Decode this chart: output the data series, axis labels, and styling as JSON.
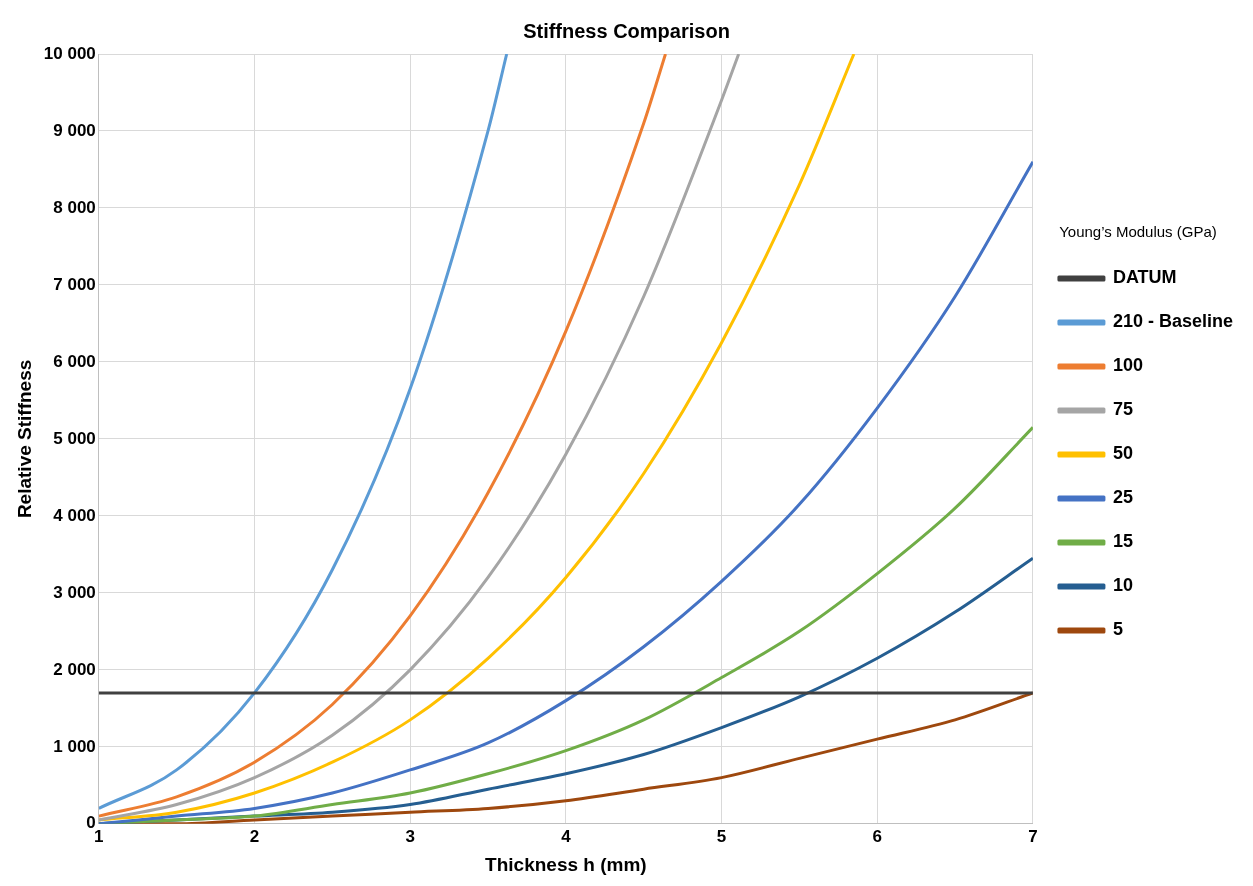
{
  "chart_data": {
    "type": "line",
    "title": "Stiffness Comparison",
    "xlabel": "Thickness h (mm)",
    "ylabel": "Relative Stiffness",
    "legend_title": "Young’s Modulus (GPa)",
    "legend": "right",
    "grid": true,
    "marker": "none",
    "line_style": "solid",
    "xlim": [
      1,
      7
    ],
    "xticks": [
      1,
      2,
      3,
      4,
      5,
      6,
      7
    ],
    "ylim": [
      0,
      10000
    ],
    "yticks": [
      0,
      {
        "value": 1000,
        "label": "1 000"
      },
      {
        "value": 2000,
        "label": "2 000"
      },
      {
        "value": 3000,
        "label": "3 000"
      },
      {
        "value": 4000,
        "label": "4 000"
      },
      {
        "value": 5000,
        "label": "5 000"
      },
      {
        "value": 6000,
        "label": "6 000"
      },
      {
        "value": 7000,
        "label": "7 000"
      },
      {
        "value": 8000,
        "label": "8 000"
      },
      {
        "value": 9000,
        "label": "9 000"
      },
      {
        "value": 10000,
        "label": "10 000"
      }
    ],
    "series": [
      {
        "name": "DATUM",
        "color": "#404040",
        "x": [
          1,
          7
        ],
        "values": [
          1700,
          1700
        ]
      },
      {
        "name": "210 - Baseline",
        "color": "#5b9bd5",
        "x": [
          1,
          1.5,
          2,
          2.5,
          3,
          3.5,
          3.62
        ],
        "values": [
          200,
          700,
          1700,
          3300,
          5650,
          9000,
          10000
        ]
      },
      {
        "name": "100",
        "color": "#ed7d31",
        "x": [
          1,
          1.5,
          2,
          2.5,
          3,
          3.5,
          4,
          4.5,
          4.64
        ],
        "values": [
          100,
          350,
          800,
          1550,
          2700,
          4300,
          6400,
          9100,
          10000
        ]
      },
      {
        "name": "75",
        "color": "#a5a5a5",
        "x": [
          1,
          1.5,
          2,
          2.5,
          3,
          3.5,
          4,
          4.5,
          5,
          5.11
        ],
        "values": [
          50,
          250,
          600,
          1150,
          2000,
          3200,
          4800,
          6850,
          9400,
          10000
        ]
      },
      {
        "name": "50",
        "color": "#ffc000",
        "x": [
          1,
          1.5,
          2,
          2.5,
          3,
          3.5,
          4,
          4.5,
          5,
          5.5,
          5.85
        ],
        "values": [
          50,
          150,
          400,
          800,
          1350,
          2150,
          3200,
          4550,
          6250,
          8300,
          10000
        ]
      },
      {
        "name": "25",
        "color": "#4472c4",
        "x": [
          1,
          1.5,
          2,
          2.5,
          3,
          3.5,
          4,
          4.5,
          5,
          5.5,
          6,
          6.5,
          7
        ],
        "values": [
          0,
          100,
          200,
          400,
          700,
          1050,
          1600,
          2300,
          3150,
          4150,
          5400,
          6850,
          8600
        ]
      },
      {
        "name": "15",
        "color": "#70ad47",
        "x": [
          1,
          1.5,
          2,
          2.5,
          3,
          3.5,
          4,
          4.5,
          5,
          5.5,
          6,
          6.5,
          7
        ],
        "values": [
          0,
          50,
          100,
          250,
          400,
          650,
          950,
          1350,
          1900,
          2500,
          3250,
          4100,
          5150
        ]
      },
      {
        "name": "10",
        "color": "#255e91",
        "x": [
          1,
          1.5,
          2,
          2.5,
          3,
          3.5,
          4,
          4.5,
          5,
          5.5,
          6,
          6.5,
          7
        ],
        "values": [
          0,
          50,
          100,
          150,
          250,
          450,
          650,
          900,
          1250,
          1650,
          2150,
          2750,
          3450
        ]
      },
      {
        "name": "5",
        "color": "#9e480e",
        "x": [
          1,
          1.5,
          2,
          2.5,
          3,
          3.5,
          4,
          4.5,
          5,
          5.5,
          6,
          6.5,
          7
        ],
        "values": [
          0,
          0,
          50,
          100,
          150,
          200,
          300,
          450,
          600,
          850,
          1100,
          1350,
          1700
        ]
      }
    ]
  }
}
